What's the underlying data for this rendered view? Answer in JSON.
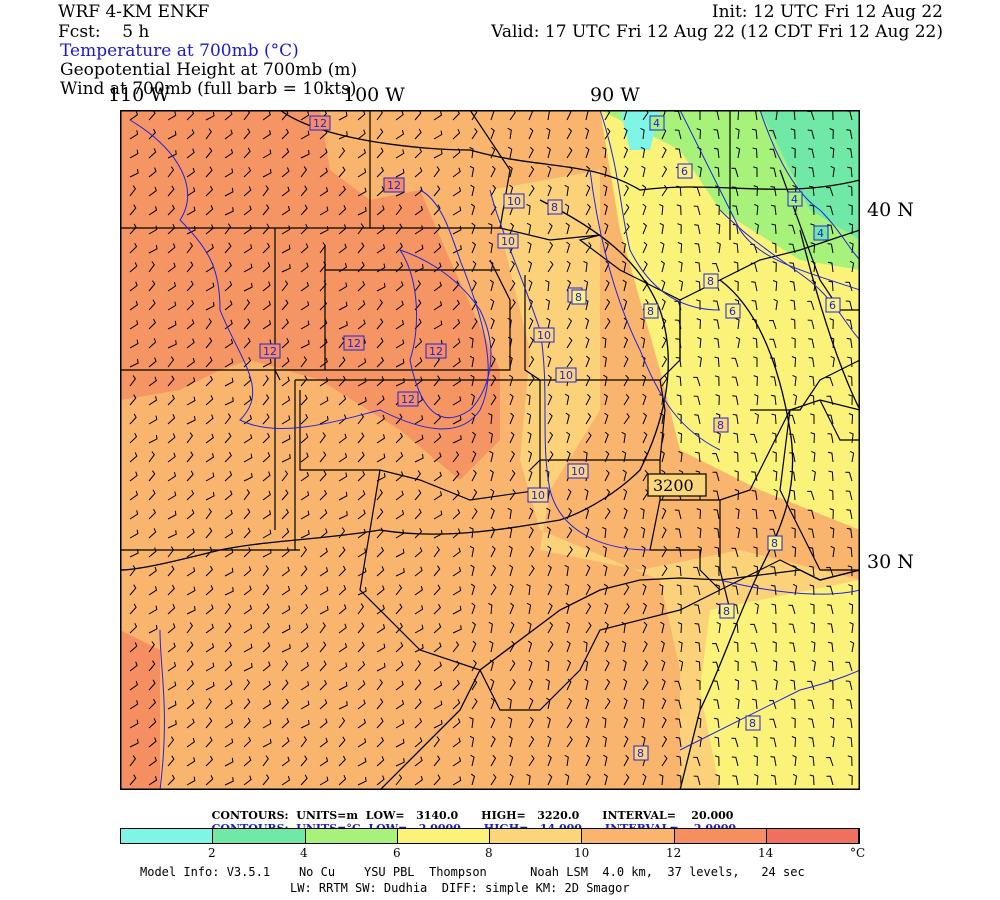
{
  "header": {
    "model": "WRF 4-KM ENKF",
    "fcst": "Fcst:    5 h",
    "init": "Init: 12 UTC Fri 12 Aug 22",
    "valid": "Valid: 17 UTC Fri 12 Aug 22 (12 CDT Fri 12 Aug 22)",
    "field1": "Temperature at 700mb (°C)",
    "field2": "Geopotential Height at 700mb (m)",
    "field3": "Wind at 700mb (full barb = 10kts)"
  },
  "axes": {
    "lon_labels": [
      "110 W",
      "100 W",
      "90 W"
    ],
    "lat_labels": [
      "40 N",
      "30 N"
    ]
  },
  "contour_labels": {
    "temperature": [
      "12",
      "12",
      "10",
      "8",
      "10",
      "4",
      "6",
      "4",
      "4",
      "8",
      "10",
      "12",
      "12",
      "12",
      "8",
      "8",
      "8",
      "6",
      "6",
      "10",
      "12",
      "10",
      "10",
      "10",
      "8",
      "8",
      "8",
      "8",
      "8"
    ],
    "height": [
      "3200"
    ]
  },
  "contour_info": {
    "height": {
      "prefix": "CONTOURS:",
      "units": "UNITS=m",
      "low": "LOW=   3140.0",
      "high": "HIGH=   3220.0",
      "interval": "INTERVAL=    20.000"
    },
    "temperature": {
      "prefix": "CONTOURS:",
      "units": "UNITS=°C",
      "low": "LOW=   2.0000",
      "high": "HIGH=   14.000",
      "interval": "INTERVAL=    2.0000"
    }
  },
  "legend": {
    "ticks": [
      "2",
      "4",
      "6",
      "8",
      "10",
      "12",
      "14",
      "°C"
    ],
    "colors": [
      "#7ff5e6",
      "#70e8a6",
      "#a6f27a",
      "#fbf27a",
      "#fbd57a",
      "#f9b46e",
      "#f58f62",
      "#f07060"
    ]
  },
  "footer": {
    "line1": "Model Info: V3.5.1    No Cu    YSU PBL  Thompson      Noah LSM  4.0 km,  37 levels,   24 sec",
    "line2": "LW: RRTM SW: Dudhia  DIFF: simple KM: 2D Smagor"
  }
}
